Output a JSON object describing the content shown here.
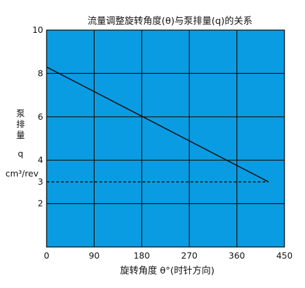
{
  "chart_data": {
    "type": "line",
    "title": "流量调整旋转角度(θ)与泵排量(q)的关系",
    "xlabel": "旋转角度 θ°(时针方向)",
    "ylabel_lines": [
      "泵",
      "排",
      "量",
      "q",
      "cm³/rev"
    ],
    "xlim": [
      0,
      450
    ],
    "ylim": [
      0,
      10
    ],
    "x_ticks": [
      "0",
      "90",
      "180",
      "270",
      "360",
      "450"
    ],
    "y_ticks": [
      "10",
      "8",
      "6",
      "4",
      "3",
      "2"
    ],
    "grid": true,
    "colors": {
      "plot_background": "#0a9ce3",
      "grid": "#111111",
      "line": "#111111"
    },
    "series": [
      {
        "style": "solid",
        "x": [
          0,
          420
        ],
        "y": [
          8.3,
          3.0
        ]
      },
      {
        "style": "dashed",
        "x": [
          0,
          420
        ],
        "y": [
          3.0,
          3.0
        ]
      }
    ]
  }
}
